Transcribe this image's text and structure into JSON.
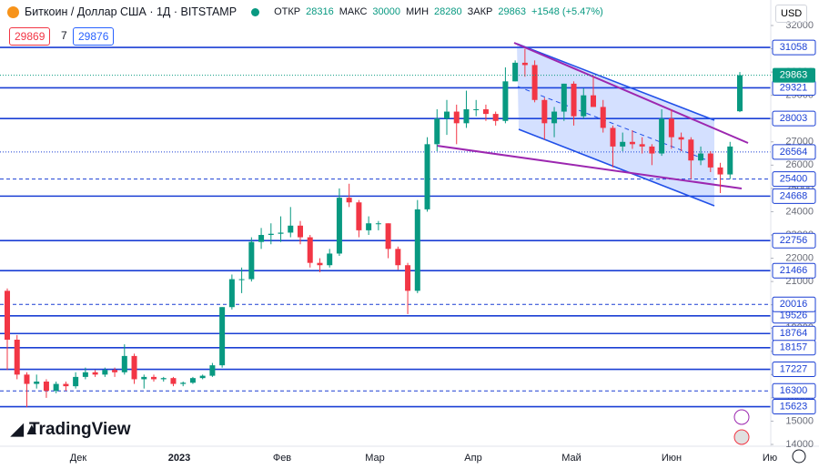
{
  "chart_data": {
    "type": "candlestick",
    "title": "Биткоин / Доллар США · 1Д · BITSTAMP",
    "header_labels": [
      "ОТКР",
      "МАКС",
      "МИН",
      "ЗАКР"
    ],
    "change_label": "+1548 (+5.47%)",
    "bid": "29869",
    "spread": "7",
    "ask": "29876",
    "currency": "USD",
    "logo": "TradingView",
    "x_labels": [
      "Дек",
      "2023",
      "Фев",
      "Мар",
      "Апр",
      "Май",
      "Июн",
      "Ию"
    ],
    "ylim": [
      14000,
      32000
    ],
    "yticks": [
      14000,
      15000,
      16000,
      17000,
      18000,
      19000,
      20000,
      21000,
      22000,
      23000,
      24000,
      25000,
      26000,
      27000,
      28000,
      29000,
      30000,
      31000,
      32000
    ],
    "up_color": "#089981",
    "down_color": "#f23645",
    "level_color": "#1a3fd4",
    "levels": [
      31058,
      29321,
      28003,
      24668,
      22756,
      21466,
      19526,
      18764,
      18157,
      17227,
      15623
    ],
    "dotted_levels": [
      26564
    ],
    "dashed_levels": [
      25400,
      20016,
      16300
    ],
    "ohlc": [
      [
        20600,
        20700,
        17200,
        18500
      ],
      [
        18500,
        18700,
        16800,
        17000
      ],
      [
        17000,
        17100,
        15600,
        16600
      ],
      [
        16600,
        17000,
        16400,
        16700
      ],
      [
        16700,
        16800,
        16000,
        16300
      ],
      [
        16300,
        16700,
        16200,
        16600
      ],
      [
        16600,
        16700,
        16300,
        16500
      ],
      [
        16500,
        17100,
        16400,
        16900
      ],
      [
        16900,
        17300,
        16800,
        17100
      ],
      [
        17100,
        17200,
        16900,
        17000
      ],
      [
        17000,
        17300,
        16900,
        17200
      ],
      [
        17200,
        17300,
        16900,
        17100
      ],
      [
        17100,
        18300,
        17000,
        17800
      ],
      [
        17800,
        17900,
        16600,
        16800
      ],
      [
        16800,
        17000,
        16400,
        16900
      ],
      [
        16900,
        17000,
        16700,
        16800
      ],
      [
        16800,
        16900,
        16700,
        16850
      ],
      [
        16850,
        16900,
        16500,
        16600
      ],
      [
        16600,
        16700,
        16500,
        16650
      ],
      [
        16650,
        16900,
        16600,
        16850
      ],
      [
        16850,
        17000,
        16800,
        16950
      ],
      [
        16950,
        17500,
        16900,
        17400
      ],
      [
        17400,
        19900,
        17300,
        19900
      ],
      [
        19900,
        21300,
        19800,
        21100
      ],
      [
        21100,
        21600,
        20500,
        21100
      ],
      [
        21100,
        22900,
        21000,
        22700
      ],
      [
        22700,
        23300,
        22400,
        23000
      ],
      [
        23000,
        23500,
        22600,
        23050
      ],
      [
        23050,
        23800,
        22700,
        23100
      ],
      [
        23100,
        24200,
        22900,
        23400
      ],
      [
        23400,
        23600,
        22600,
        22900
      ],
      [
        22900,
        23000,
        21600,
        21800
      ],
      [
        21800,
        22000,
        21400,
        21700
      ],
      [
        21700,
        22400,
        21600,
        22200
      ],
      [
        22200,
        25000,
        22100,
        24600
      ],
      [
        24600,
        25200,
        24200,
        24400
      ],
      [
        24400,
        24500,
        22900,
        23200
      ],
      [
        23200,
        23800,
        23000,
        23500
      ],
      [
        23500,
        23600,
        23200,
        23500
      ],
      [
        23500,
        23500,
        22000,
        22400
      ],
      [
        22400,
        22500,
        21500,
        21700
      ],
      [
        21700,
        21800,
        19600,
        20600
      ],
      [
        20600,
        24500,
        20500,
        24100
      ],
      [
        24100,
        27200,
        24000,
        26900
      ],
      [
        26900,
        28400,
        26600,
        28000
      ],
      [
        28000,
        28800,
        27300,
        28300
      ],
      [
        28300,
        28600,
        26900,
        27800
      ],
      [
        27800,
        29200,
        27600,
        28400
      ],
      [
        28400,
        28800,
        28100,
        28400
      ],
      [
        28400,
        28600,
        27900,
        28200
      ],
      [
        28200,
        28300,
        27700,
        27900
      ],
      [
        27900,
        30200,
        27800,
        29600
      ],
      [
        29600,
        30500,
        29600,
        30400
      ],
      [
        30400,
        31000,
        29800,
        30300
      ],
      [
        30300,
        30500,
        28700,
        28800
      ],
      [
        28800,
        28900,
        27100,
        27800
      ],
      [
        27800,
        28500,
        27200,
        28300
      ],
      [
        28300,
        29500,
        27900,
        29500
      ],
      [
        29500,
        29600,
        27700,
        28100
      ],
      [
        28100,
        29300,
        28000,
        29000
      ],
      [
        29000,
        29800,
        28500,
        28500
      ],
      [
        28500,
        28800,
        27400,
        27600
      ],
      [
        27600,
        27700,
        25900,
        26800
      ],
      [
        26800,
        27400,
        26600,
        27000
      ],
      [
        27000,
        27500,
        26700,
        26900
      ],
      [
        26900,
        27200,
        26500,
        26800
      ],
      [
        26800,
        26900,
        26000,
        26500
      ],
      [
        26500,
        28400,
        26400,
        28000
      ],
      [
        28000,
        28400,
        26700,
        27200
      ],
      [
        27200,
        27400,
        26600,
        27100
      ],
      [
        27100,
        27200,
        25400,
        26200
      ],
      [
        26200,
        26800,
        26000,
        26500
      ],
      [
        26500,
        26600,
        25700,
        25900
      ],
      [
        25900,
        26100,
        24800,
        25600
      ],
      [
        25600,
        27000,
        25400,
        26800
      ],
      [
        28316,
        30000,
        28280,
        29863
      ]
    ]
  }
}
